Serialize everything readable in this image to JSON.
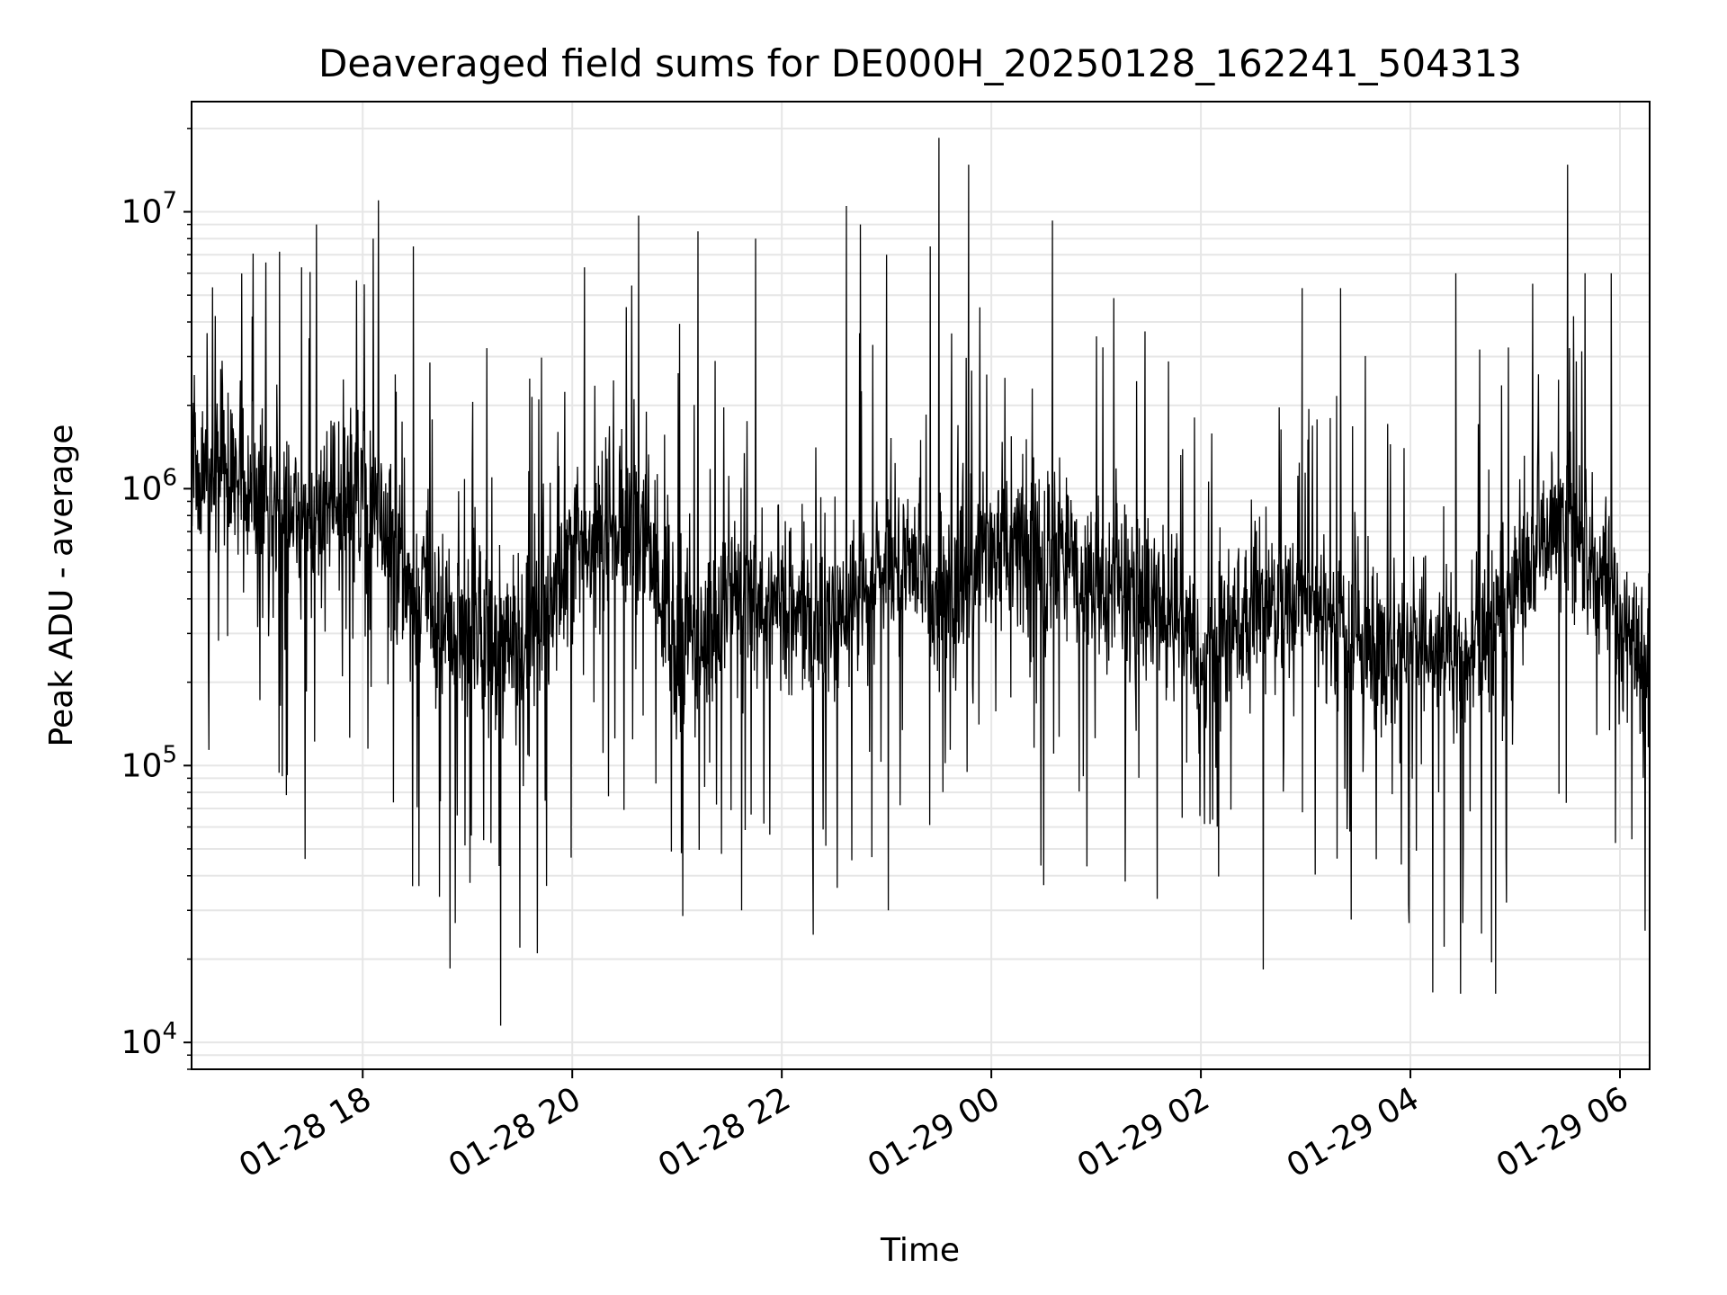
{
  "chart_data": {
    "type": "line",
    "title": "Deaveraged field sums for DE000H_20250128_162241_504313",
    "xlabel": "Time",
    "ylabel": "Peak ADU - average",
    "y_scale": "log",
    "ylim": [
      8000,
      25000000
    ],
    "xlim": [
      "2025-01-28 16:22",
      "2025-01-29 06:17"
    ],
    "grid": true,
    "line_color": "#000000",
    "grid_color": "#e6e6e6",
    "x_ticks": [
      {
        "value": "2025-01-28 18:00",
        "label": "01-28 18"
      },
      {
        "value": "2025-01-28 20:00",
        "label": "01-28 20"
      },
      {
        "value": "2025-01-28 22:00",
        "label": "01-28 22"
      },
      {
        "value": "2025-01-29 00:00",
        "label": "01-29 00"
      },
      {
        "value": "2025-01-29 02:00",
        "label": "01-29 02"
      },
      {
        "value": "2025-01-29 04:00",
        "label": "01-29 04"
      },
      {
        "value": "2025-01-29 06:00",
        "label": "01-29 06"
      }
    ],
    "y_ticks": [
      {
        "value": 10000,
        "label": "10",
        "exp": "4"
      },
      {
        "value": 100000,
        "label": "10",
        "exp": "5"
      },
      {
        "value": 1000000,
        "label": "10",
        "exp": "6"
      },
      {
        "value": 10000000,
        "label": "10",
        "exp": "7"
      }
    ],
    "baseline": [
      [
        "2025-01-28 16:22",
        1200000
      ],
      [
        "2025-01-28 17:30",
        800000
      ],
      [
        "2025-01-28 18:00",
        1000000
      ],
      [
        "2025-01-28 18:30",
        400000
      ],
      [
        "2025-01-28 19:30",
        250000
      ],
      [
        "2025-01-28 20:00",
        550000
      ],
      [
        "2025-01-28 20:40",
        700000
      ],
      [
        "2025-01-28 21:00",
        250000
      ],
      [
        "2025-01-28 21:40",
        450000
      ],
      [
        "2025-01-28 22:30",
        300000
      ],
      [
        "2025-01-28 23:00",
        550000
      ],
      [
        "2025-01-28 23:30",
        400000
      ],
      [
        "2025-01-29 00:00",
        600000
      ],
      [
        "2025-01-29 01:00",
        500000
      ],
      [
        "2025-01-29 02:00",
        280000
      ],
      [
        "2025-01-29 03:00",
        400000
      ],
      [
        "2025-01-29 03:30",
        280000
      ],
      [
        "2025-01-29 04:30",
        250000
      ],
      [
        "2025-01-29 05:30",
        800000
      ],
      [
        "2025-01-29 06:17",
        200000
      ]
    ],
    "peaks": [
      [
        "2025-01-28 18:09",
        11000000
      ],
      [
        "2025-01-28 18:06",
        8000000
      ],
      [
        "2025-01-28 17:25",
        6300000
      ],
      [
        "2025-01-28 18:29",
        7500000
      ],
      [
        "2025-01-28 20:38",
        9700000
      ],
      [
        "2025-01-28 20:07",
        6300000
      ],
      [
        "2025-01-28 21:12",
        8500000
      ],
      [
        "2025-01-28 21:45",
        8000000
      ],
      [
        "2025-01-28 22:37",
        10500000
      ],
      [
        "2025-01-28 22:45",
        9000000
      ],
      [
        "2025-01-28 23:00",
        7000000
      ],
      [
        "2025-01-28 23:25",
        7500000
      ],
      [
        "2025-01-28 23:30",
        18500000
      ],
      [
        "2025-01-28 23:47",
        14800000
      ],
      [
        "2025-01-29 00:35",
        9300000
      ],
      [
        "2025-01-29 01:28",
        3700000
      ],
      [
        "2025-01-29 02:58",
        5300000
      ],
      [
        "2025-01-29 03:20",
        5300000
      ],
      [
        "2025-01-29 04:26",
        6000000
      ],
      [
        "2025-01-29 05:10",
        5500000
      ],
      [
        "2025-01-29 05:30",
        14800000
      ],
      [
        "2025-01-29 05:40",
        6000000
      ],
      [
        "2025-01-29 05:55",
        6000000
      ]
    ],
    "dips": [
      [
        "2025-01-28 19:19",
        11500
      ],
      [
        "2025-01-28 18:50",
        18500
      ],
      [
        "2025-01-28 19:40",
        21000
      ],
      [
        "2025-01-28 19:30",
        22000
      ],
      [
        "2025-01-28 18:53",
        27000
      ],
      [
        "2025-01-28 17:27",
        46000
      ],
      [
        "2025-01-28 21:37",
        30000
      ],
      [
        "2025-01-28 22:18",
        24500
      ],
      [
        "2025-01-28 23:01",
        30000
      ],
      [
        "2025-01-29 00:30",
        37000
      ],
      [
        "2025-01-29 01:35",
        33000
      ],
      [
        "2025-01-29 04:30",
        27000
      ],
      [
        "2025-01-29 04:55",
        32000
      ],
      [
        "2025-01-29 06:17",
        40000
      ]
    ]
  }
}
